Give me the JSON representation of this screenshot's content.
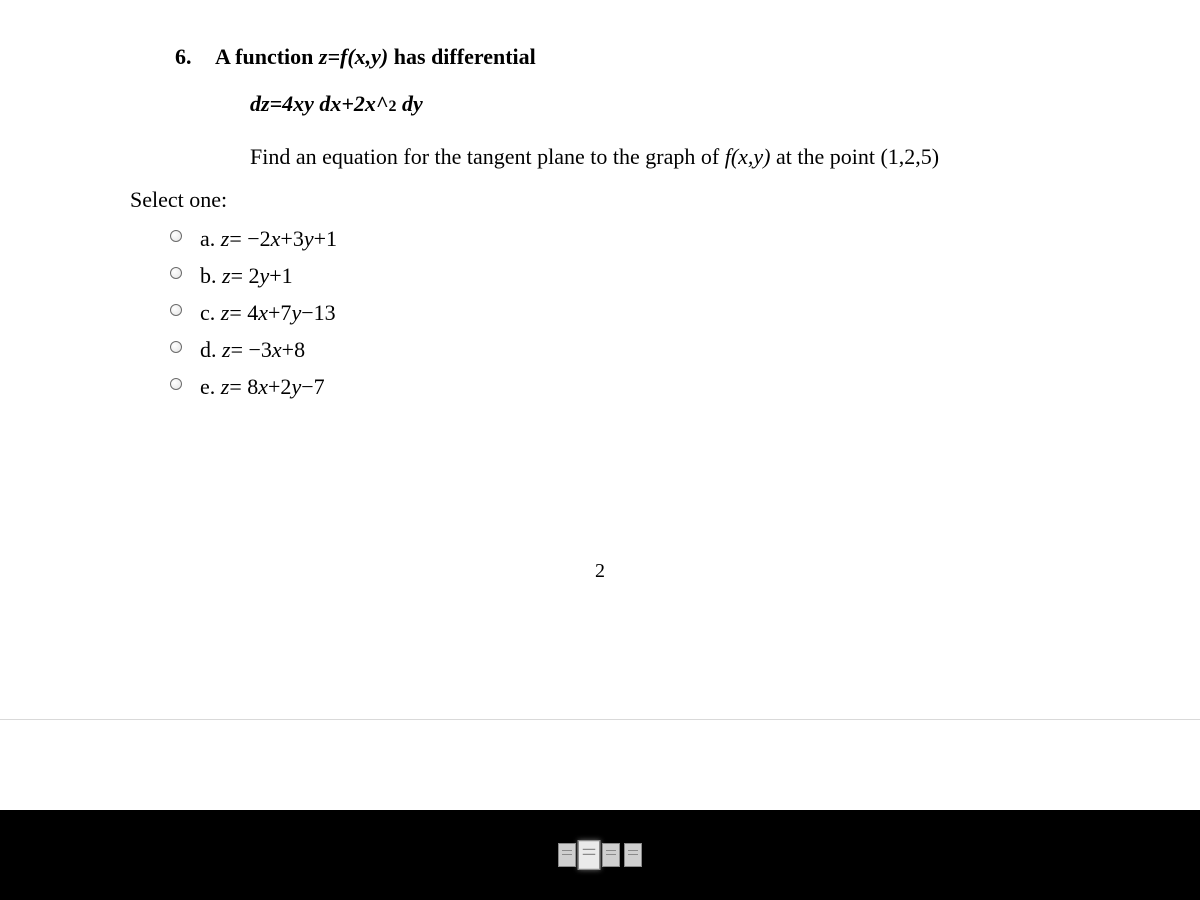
{
  "question": {
    "number": "6.",
    "title_prefix": "A function ",
    "title_expr": "z=f(x,y)",
    "title_suffix": " has differential",
    "diff_expr": "dz=4xy dx+2x^2 dy",
    "find_prefix": "Find an equation for the tangent plane to the graph of ",
    "find_fn": "f(x,y)",
    "find_suffix": " at the point (1,2,5)"
  },
  "select_label": "Select one:",
  "options": [
    {
      "letter": "a.",
      "var": "z",
      "eq": "= −2",
      "v1": "x",
      "mid": "+3",
      "v2": "y",
      "tail": "+1"
    },
    {
      "letter": "b.",
      "var": "z",
      "eq": "= 2",
      "v1": "y",
      "mid": "+1",
      "v2": "",
      "tail": ""
    },
    {
      "letter": "c.",
      "var": "z",
      "eq": "= 4",
      "v1": "x",
      "mid": "+7",
      "v2": "y",
      "tail": "−13"
    },
    {
      "letter": "d.",
      "var": "z",
      "eq": "= −3",
      "v1": "x",
      "mid": "+8",
      "v2": "",
      "tail": ""
    },
    {
      "letter": "e.",
      "var": "z",
      "eq": "= 8",
      "v1": "x",
      "mid": "+2",
      "v2": "y",
      "tail": "−7"
    }
  ],
  "page_number": "2",
  "thumbnails": {
    "count": 4,
    "active_index": 1
  },
  "colors": {
    "page_bg": "#ffffff",
    "bar_bg": "#000000",
    "text": "#000000"
  }
}
